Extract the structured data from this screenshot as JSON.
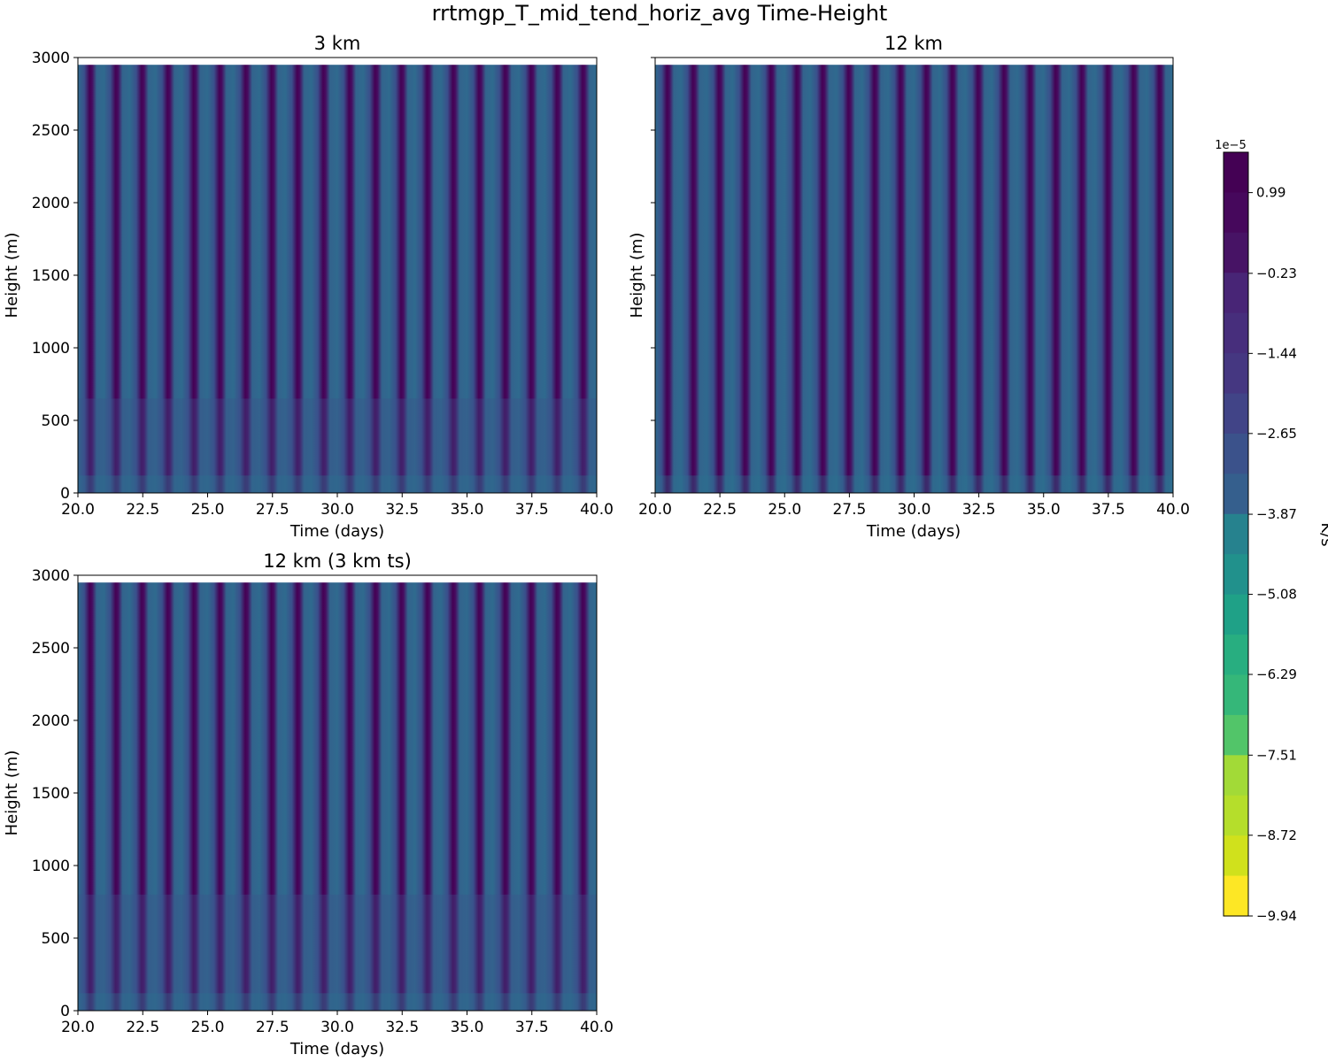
{
  "figure": {
    "title": "rrtmgp_T_mid_tend_horiz_avg Time-Height"
  },
  "chart_data": [
    {
      "type": "heatmap",
      "title": "3 km",
      "xlabel": "Time (days)",
      "ylabel": "Height (m)",
      "xlim": [
        20.0,
        40.0
      ],
      "ylim": [
        0,
        3000
      ],
      "data_top": 2950,
      "x_ticks": [
        "20.0",
        "22.5",
        "25.0",
        "27.5",
        "30.0",
        "32.5",
        "35.0",
        "37.5",
        "40.0"
      ],
      "y_ticks": [
        "0",
        "500",
        "1000",
        "1500",
        "2000",
        "2500",
        "3000"
      ],
      "diurnal_period_days": 1.0,
      "layer_break_height_m": 650
    },
    {
      "type": "heatmap",
      "title": "12 km",
      "xlabel": "Time (days)",
      "ylabel": "Height (m)",
      "xlim": [
        20.0,
        40.0
      ],
      "ylim": [
        0,
        3000
      ],
      "data_top": 2950,
      "x_ticks": [
        "20.0",
        "22.5",
        "25.0",
        "27.5",
        "30.0",
        "32.5",
        "35.0",
        "37.5",
        "40.0"
      ],
      "y_ticks": [],
      "diurnal_period_days": 1.0,
      "layer_break_height_m": 0
    },
    {
      "type": "heatmap",
      "title": "12 km (3 km ts)",
      "xlabel": "Time (days)",
      "ylabel": "Height (m)",
      "xlim": [
        20.0,
        40.0
      ],
      "ylim": [
        0,
        3000
      ],
      "data_top": 2950,
      "x_ticks": [
        "20.0",
        "22.5",
        "25.0",
        "27.5",
        "30.0",
        "32.5",
        "35.0",
        "37.5",
        "40.0"
      ],
      "y_ticks": [
        "0",
        "500",
        "1000",
        "1500",
        "2000",
        "2500",
        "3000"
      ],
      "diurnal_period_days": 1.0,
      "layer_break_height_m": 800
    }
  ],
  "colorbar": {
    "label": "K/s",
    "exponent": "1e−5",
    "range": [
      -9.94,
      1.6
    ],
    "tick_labels": [
      "0.99",
      "−0.23",
      "−1.44",
      "−2.65",
      "−3.87",
      "−5.08",
      "−6.29",
      "−7.51",
      "−8.72",
      "−9.94"
    ],
    "tick_values": [
      0.99,
      -0.23,
      -1.44,
      -2.65,
      -3.87,
      -5.08,
      -6.29,
      -7.51,
      -8.72,
      -9.94
    ],
    "levels": 19,
    "colors": [
      "#440154",
      "#46085c",
      "#471365",
      "#481d6f",
      "#482576",
      "#472e7c",
      "#453781",
      "#414487",
      "#3b528b",
      "#355f8d",
      "#2c728e",
      "#26828e",
      "#21918c",
      "#1fa187",
      "#28ae80",
      "#35b779",
      "#52c569",
      "#6ece58",
      "#a2da37",
      "#b5de2b",
      "#d0e11c",
      "#fde725"
    ]
  }
}
